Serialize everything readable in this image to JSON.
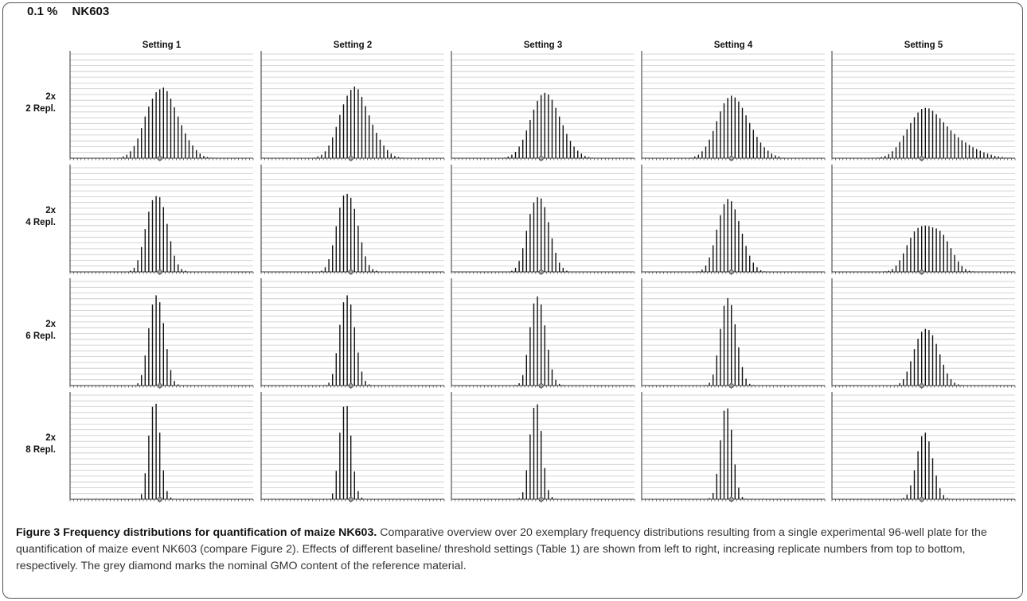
{
  "header": {
    "percent": "0.1 %",
    "event": "NK603"
  },
  "caption": {
    "title": "Figure 3 Frequency distributions for quantification of maize NK603.",
    "text": "Comparative overview over 20 exemplary frequency distributions resulting from a single experimental 96-well plate for the quantification of maize event NK603 (compare Figure 2). Effects of different baseline/ threshold settings (Table 1) are shown from left to right, increasing replicate numbers from top to bottom, respectively. The grey diamond marks the nominal GMO content of the reference material."
  },
  "colors": {
    "bars": "#111111",
    "grid": "#c8c8c8",
    "axis": "#333333",
    "diamond_fill": "#9a9a9a",
    "diamond_stroke": "#444444"
  },
  "chart_data": {
    "type": "bar",
    "columns": [
      "Setting 1",
      "Setting 2",
      "Setting 3",
      "Setting 4",
      "Setting 5"
    ],
    "rows": [
      {
        "label_top": "2x",
        "label_bottom": "2 Repl."
      },
      {
        "label_top": "2x",
        "label_bottom": "4 Repl."
      },
      {
        "label_top": "2x",
        "label_bottom": "6 Repl."
      },
      {
        "label_top": "2x",
        "label_bottom": "8 Repl."
      }
    ],
    "bins": 50,
    "nominal_bin": 24,
    "grid_lines": 18,
    "ylim": [
      0,
      18
    ],
    "panels": [
      [
        {
          "values": [
            0,
            0,
            0,
            0,
            0,
            0,
            0,
            0,
            0,
            0,
            0,
            0,
            0,
            0.1,
            0.3,
            0.6,
            1.2,
            2.1,
            3.4,
            5.2,
            7.2,
            8.9,
            10.3,
            11.4,
            11.9,
            12.2,
            11.6,
            10.3,
            8.8,
            7.2,
            5.7,
            4.3,
            3.1,
            2.2,
            1.4,
            0.8,
            0.4,
            0.2,
            0.1,
            0,
            0,
            0,
            0,
            0,
            0,
            0,
            0,
            0,
            0,
            0
          ]
        },
        {
          "values": [
            0,
            0,
            0,
            0,
            0,
            0,
            0,
            0,
            0,
            0,
            0,
            0,
            0,
            0,
            0.1,
            0.3,
            0.6,
            1.2,
            2.2,
            3.6,
            5.4,
            7.5,
            9.3,
            10.8,
            11.8,
            12.4,
            11.9,
            10.6,
            9.0,
            7.4,
            5.8,
            4.4,
            3.2,
            2.2,
            1.4,
            0.8,
            0.4,
            0.2,
            0.1,
            0,
            0,
            0,
            0,
            0,
            0,
            0,
            0,
            0,
            0,
            0
          ]
        },
        {
          "values": [
            0,
            0,
            0,
            0,
            0,
            0,
            0,
            0,
            0,
            0,
            0,
            0,
            0,
            0,
            0.1,
            0.3,
            0.6,
            1.1,
            2.0,
            3.2,
            4.8,
            6.6,
            8.4,
            9.9,
            10.9,
            11.3,
            11.0,
            10.1,
            8.7,
            7.2,
            5.7,
            4.2,
            3.0,
            2.0,
            1.3,
            0.8,
            0.4,
            0.2,
            0.1,
            0,
            0,
            0,
            0,
            0,
            0,
            0,
            0,
            0,
            0,
            0
          ]
        },
        {
          "values": [
            0,
            0,
            0,
            0,
            0,
            0,
            0,
            0,
            0,
            0,
            0,
            0,
            0,
            0.1,
            0.3,
            0.6,
            1.2,
            2.0,
            3.2,
            4.7,
            6.4,
            8.1,
            9.5,
            10.4,
            10.8,
            10.5,
            9.8,
            8.7,
            7.4,
            6.1,
            4.9,
            3.7,
            2.7,
            1.9,
            1.3,
            0.8,
            0.5,
            0.3,
            0.1,
            0,
            0,
            0,
            0,
            0,
            0,
            0,
            0,
            0,
            0,
            0
          ]
        },
        {
          "values": [
            0,
            0,
            0,
            0,
            0,
            0,
            0,
            0,
            0,
            0,
            0,
            0,
            0.1,
            0.2,
            0.4,
            0.7,
            1.2,
            1.9,
            2.8,
            3.9,
            5.0,
            6.1,
            7.1,
            7.9,
            8.5,
            8.7,
            8.6,
            8.2,
            7.6,
            6.9,
            6.2,
            5.5,
            4.8,
            4.2,
            3.6,
            3.1,
            2.7,
            2.3,
            1.9,
            1.6,
            1.3,
            1.0,
            0.8,
            0.6,
            0.4,
            0.3,
            0.2,
            0.1,
            0.1,
            0
          ]
        }
      ],
      [
        {
          "values": [
            0,
            0,
            0,
            0,
            0,
            0,
            0,
            0,
            0,
            0,
            0,
            0,
            0,
            0,
            0,
            0,
            0.2,
            0.7,
            2.0,
            4.3,
            7.4,
            10.4,
            12.4,
            13.1,
            12.9,
            11.2,
            8.3,
            5.3,
            2.8,
            1.3,
            0.5,
            0.2,
            0,
            0,
            0,
            0,
            0,
            0,
            0,
            0,
            0,
            0,
            0,
            0,
            0,
            0,
            0,
            0,
            0,
            0
          ]
        },
        {
          "values": [
            0,
            0,
            0,
            0,
            0,
            0,
            0,
            0,
            0,
            0,
            0,
            0,
            0,
            0,
            0,
            0,
            0.2,
            0.8,
            2.2,
            4.6,
            7.9,
            11.1,
            13.2,
            13.5,
            12.8,
            10.9,
            8.0,
            5.1,
            2.7,
            1.2,
            0.5,
            0.2,
            0,
            0,
            0,
            0,
            0,
            0,
            0,
            0,
            0,
            0,
            0,
            0,
            0,
            0,
            0,
            0,
            0,
            0
          ]
        },
        {
          "values": [
            0,
            0,
            0,
            0,
            0,
            0,
            0,
            0,
            0,
            0,
            0,
            0,
            0,
            0,
            0,
            0,
            0.2,
            0.7,
            1.9,
            4.1,
            7.1,
            10.0,
            12.0,
            12.9,
            12.7,
            11.2,
            8.6,
            5.8,
            3.3,
            1.6,
            0.7,
            0.2,
            0,
            0,
            0,
            0,
            0,
            0,
            0,
            0,
            0,
            0,
            0,
            0,
            0,
            0,
            0,
            0,
            0,
            0
          ]
        },
        {
          "values": [
            0,
            0,
            0,
            0,
            0,
            0,
            0,
            0,
            0,
            0,
            0,
            0,
            0,
            0,
            0,
            0.1,
            0.4,
            1.1,
            2.5,
            4.6,
            7.3,
            9.8,
            11.7,
            12.6,
            12.2,
            10.8,
            8.8,
            6.6,
            4.5,
            2.8,
            1.6,
            0.8,
            0.3,
            0.1,
            0,
            0,
            0,
            0,
            0,
            0,
            0,
            0,
            0,
            0,
            0,
            0,
            0,
            0,
            0,
            0
          ]
        },
        {
          "values": [
            0,
            0,
            0,
            0,
            0,
            0,
            0,
            0,
            0,
            0,
            0,
            0,
            0,
            0,
            0.1,
            0.2,
            0.5,
            1.1,
            2.0,
            3.2,
            4.6,
            5.9,
            7.0,
            7.6,
            7.9,
            8.0,
            7.9,
            7.7,
            7.5,
            7.1,
            6.4,
            5.3,
            4.1,
            2.9,
            1.8,
            1.0,
            0.5,
            0.2,
            0.1,
            0,
            0,
            0,
            0,
            0,
            0,
            0,
            0,
            0,
            0,
            0
          ]
        }
      ],
      [
        {
          "values": [
            0,
            0,
            0,
            0,
            0,
            0,
            0,
            0,
            0,
            0,
            0,
            0,
            0,
            0,
            0,
            0,
            0,
            0,
            0.4,
            1.8,
            5.2,
            9.9,
            14.0,
            15.6,
            14.4,
            10.8,
            6.3,
            2.7,
            0.8,
            0.2,
            0,
            0,
            0,
            0,
            0,
            0,
            0,
            0,
            0,
            0,
            0,
            0,
            0,
            0,
            0,
            0,
            0,
            0,
            0,
            0
          ]
        },
        {
          "values": [
            0,
            0,
            0,
            0,
            0,
            0,
            0,
            0,
            0,
            0,
            0,
            0,
            0,
            0,
            0,
            0,
            0,
            0.1,
            0.5,
            2.0,
            5.6,
            10.5,
            14.4,
            15.6,
            14.0,
            10.1,
            5.7,
            2.4,
            0.8,
            0.2,
            0,
            0,
            0,
            0,
            0,
            0,
            0,
            0,
            0,
            0,
            0,
            0,
            0,
            0,
            0,
            0,
            0,
            0,
            0,
            0
          ]
        },
        {
          "values": [
            0,
            0,
            0,
            0,
            0,
            0,
            0,
            0,
            0,
            0,
            0,
            0,
            0,
            0,
            0,
            0,
            0,
            0.1,
            0.4,
            1.8,
            5.3,
            10.1,
            14.2,
            15.4,
            14.0,
            10.4,
            6.2,
            2.8,
            1.0,
            0.3,
            0.1,
            0,
            0,
            0,
            0,
            0,
            0,
            0,
            0,
            0,
            0,
            0,
            0,
            0,
            0,
            0,
            0,
            0,
            0,
            0
          ]
        },
        {
          "values": [
            0,
            0,
            0,
            0,
            0,
            0,
            0,
            0,
            0,
            0,
            0,
            0,
            0,
            0,
            0,
            0,
            0,
            0.1,
            0.5,
            1.9,
            5.2,
            9.8,
            13.8,
            15.1,
            13.9,
            10.6,
            6.6,
            3.2,
            1.2,
            0.3,
            0.1,
            0,
            0,
            0,
            0,
            0,
            0,
            0,
            0,
            0,
            0,
            0,
            0,
            0,
            0,
            0,
            0,
            0,
            0,
            0
          ]
        },
        {
          "values": [
            0,
            0,
            0,
            0,
            0,
            0,
            0,
            0,
            0,
            0,
            0,
            0,
            0,
            0,
            0,
            0,
            0,
            0.1,
            0.4,
            1.1,
            2.4,
            4.2,
            6.3,
            8.1,
            9.3,
            9.8,
            9.6,
            8.7,
            7.2,
            5.4,
            3.6,
            2.1,
            1.1,
            0.5,
            0.2,
            0.1,
            0,
            0,
            0,
            0,
            0,
            0,
            0,
            0,
            0,
            0,
            0,
            0,
            0,
            0
          ]
        }
      ],
      [
        {
          "values": [
            0,
            0,
            0,
            0,
            0,
            0,
            0,
            0,
            0,
            0,
            0,
            0,
            0,
            0,
            0,
            0,
            0,
            0,
            0,
            0.9,
            4.5,
            11.0,
            16.0,
            16.5,
            11.5,
            5.0,
            1.4,
            0.3,
            0,
            0,
            0,
            0,
            0,
            0,
            0,
            0,
            0,
            0,
            0,
            0,
            0,
            0,
            0,
            0,
            0,
            0,
            0,
            0,
            0,
            0
          ]
        },
        {
          "values": [
            0,
            0,
            0,
            0,
            0,
            0,
            0,
            0,
            0,
            0,
            0,
            0,
            0,
            0,
            0,
            0,
            0,
            0,
            0,
            1.0,
            4.9,
            11.5,
            16.0,
            16.1,
            11.0,
            4.8,
            1.4,
            0.3,
            0,
            0,
            0,
            0,
            0,
            0,
            0,
            0,
            0,
            0,
            0,
            0,
            0,
            0,
            0,
            0,
            0,
            0,
            0,
            0,
            0,
            0
          ]
        },
        {
          "values": [
            0,
            0,
            0,
            0,
            0,
            0,
            0,
            0,
            0,
            0,
            0,
            0,
            0,
            0,
            0,
            0,
            0,
            0,
            0.2,
            1.2,
            5.0,
            11.2,
            15.8,
            16.4,
            11.8,
            5.4,
            1.6,
            0.4,
            0.1,
            0,
            0,
            0,
            0,
            0,
            0,
            0,
            0,
            0,
            0,
            0,
            0,
            0,
            0,
            0,
            0,
            0,
            0,
            0,
            0,
            0
          ]
        },
        {
          "values": [
            0,
            0,
            0,
            0,
            0,
            0,
            0,
            0,
            0,
            0,
            0,
            0,
            0,
            0,
            0,
            0,
            0,
            0,
            0.2,
            1.1,
            4.4,
            10.2,
            15.3,
            15.7,
            12.0,
            6.0,
            2.0,
            0.4,
            0.1,
            0,
            0,
            0,
            0,
            0,
            0,
            0,
            0,
            0,
            0,
            0,
            0,
            0,
            0,
            0,
            0,
            0,
            0,
            0,
            0,
            0
          ]
        },
        {
          "values": [
            0,
            0,
            0,
            0,
            0,
            0,
            0,
            0,
            0,
            0,
            0,
            0,
            0,
            0,
            0,
            0,
            0,
            0,
            0,
            0.2,
            0.8,
            2.4,
            5.0,
            8.3,
            10.9,
            11.5,
            10.0,
            7.1,
            4.1,
            1.9,
            0.7,
            0.2,
            0,
            0,
            0,
            0,
            0,
            0,
            0,
            0,
            0,
            0,
            0,
            0,
            0,
            0,
            0,
            0,
            0,
            0
          ]
        }
      ]
    ]
  }
}
